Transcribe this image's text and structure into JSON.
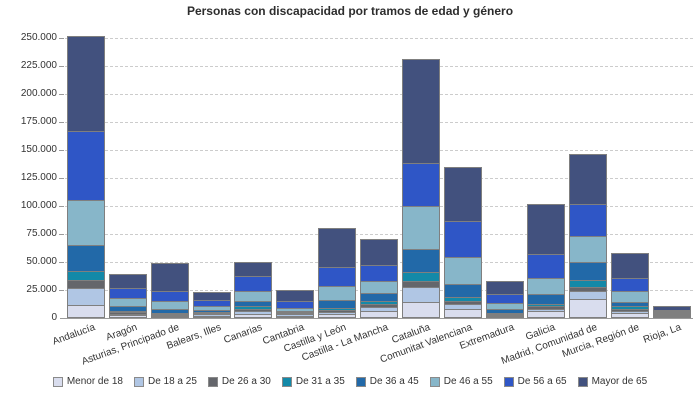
{
  "chart_data": {
    "type": "bar",
    "stacked": true,
    "title": "Personas con discapacidad por tramos de edad y género",
    "categories": [
      "Andalucía",
      "Aragón",
      "Asturias, Principado de",
      "Balears, Illes",
      "Canarias",
      "Cantabria",
      "Castilla y León",
      "Castilla - La Mancha",
      "Cataluña",
      "Comunitat Valenciana",
      "Extremadura",
      "Galicia",
      "Madrid, Comunidad de",
      "Murcia, Región de",
      "Rioja, La"
    ],
    "series": [
      {
        "name": "Menor de 18",
        "color": "#d9ddee",
        "values": [
          10300,
          1500,
          700,
          1200,
          2900,
          1200,
          2300,
          5300,
          13300,
          7400,
          900,
          5300,
          16500,
          3500,
          700
        ]
      },
      {
        "name": "De 18 a 25",
        "color": "#b0c6e4",
        "values": [
          15400,
          1400,
          800,
          1300,
          2400,
          1100,
          2100,
          3500,
          13300,
          4400,
          800,
          2100,
          6800,
          2100,
          500
        ]
      },
      {
        "name": "De 26 a 30",
        "color": "#64666b",
        "values": [
          7600,
          1500,
          1500,
          900,
          1800,
          600,
          1500,
          2400,
          5900,
          2900,
          1000,
          2400,
          3500,
          1800,
          300
        ]
      },
      {
        "name": "De 31 a 35",
        "color": "#1389a8",
        "values": [
          8000,
          1400,
          1000,
          900,
          2300,
          700,
          2400,
          2900,
          7400,
          2900,
          1300,
          2100,
          5900,
          2400,
          400
        ]
      },
      {
        "name": "De 36 a 45",
        "color": "#2269a8",
        "values": [
          22700,
          4000,
          2900,
          2000,
          5300,
          1700,
          7100,
          7400,
          20600,
          11800,
          2900,
          8800,
          16200,
          3500,
          900
        ]
      },
      {
        "name": "De 46 a 55",
        "color": "#87b6c9",
        "values": [
          40700,
          7400,
          7300,
          3500,
          8300,
          2900,
          12600,
          10300,
          38300,
          24200,
          5900,
          14200,
          23600,
          10300,
          1300
        ]
      },
      {
        "name": "De 56 a 65",
        "color": "#2f56c6",
        "values": [
          61000,
          9000,
          8800,
          5300,
          13800,
          5900,
          16800,
          14800,
          38400,
          31800,
          8000,
          21200,
          28000,
          11000,
          1800
        ]
      },
      {
        "name": "Mayor de 65",
        "color": "#42517e",
        "values": [
          84900,
          12000,
          25500,
          7400,
          12700,
          10000,
          34900,
          23000,
          92900,
          48100,
          11500,
          45100,
          44800,
          22400,
          3500
        ]
      }
    ],
    "ylim": [
      0,
      250000
    ],
    "ytick_step": 25000,
    "ytick_labels": [
      "0",
      "25.000",
      "50.000",
      "75.000",
      "100.000",
      "125.000",
      "150.000",
      "175.000",
      "200.000",
      "225.000",
      "250.000"
    ],
    "grid": "horizontal-dashed",
    "legend_position": "bottom",
    "style": {
      "bar_border_color": "#7f7f7f",
      "grid_color": "#cccccc",
      "axis_color": "#9a9a9a",
      "text_color": "#333333",
      "title_color": "#2d2d2d",
      "background": "#ffffff"
    }
  }
}
